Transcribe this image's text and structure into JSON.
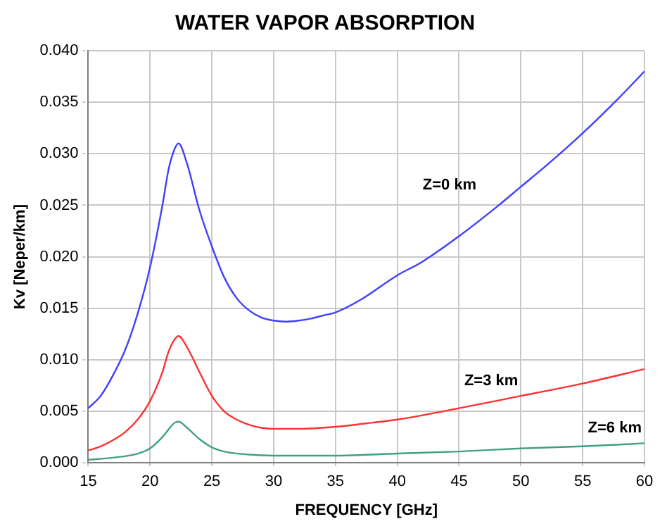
{
  "chart_data": {
    "type": "line",
    "title": "WATER VAPOR ABSORPTION",
    "xlabel": "FREQUENCY [GHz]",
    "ylabel": "Kv [Neper/km]",
    "xlim": [
      15,
      60
    ],
    "xticks": [
      15,
      20,
      25,
      30,
      35,
      40,
      45,
      50,
      55,
      60
    ],
    "ylim": [
      0,
      0.04
    ],
    "yticks": [
      {
        "value": 0,
        "label": "0.000"
      },
      {
        "value": 0.005,
        "label": "0.005"
      },
      {
        "value": 0.01,
        "label": "0.010"
      },
      {
        "value": 0.015,
        "label": "0.015"
      },
      {
        "value": 0.02,
        "label": "0.020"
      },
      {
        "value": 0.025,
        "label": "0.025"
      },
      {
        "value": 0.03,
        "label": "0.030"
      },
      {
        "value": 0.035,
        "label": "0.035"
      },
      {
        "value": 0.04,
        "label": "0.040"
      }
    ],
    "grid": true,
    "legend": false,
    "marker": "none",
    "line_style": "solid",
    "series": [
      {
        "name": "Z=0 km",
        "color": "#4040ff",
        "x": [
          15,
          16,
          17,
          18,
          19,
          20,
          21,
          21.5,
          22,
          22.3,
          23,
          24,
          25,
          26,
          27,
          28,
          29,
          30,
          31,
          32,
          33,
          34,
          35,
          37,
          40,
          42,
          45,
          48,
          50,
          52,
          55,
          58,
          60
        ],
        "values": [
          0.0053,
          0.0065,
          0.0085,
          0.011,
          0.0145,
          0.019,
          0.025,
          0.0285,
          0.0305,
          0.031,
          0.029,
          0.0245,
          0.021,
          0.018,
          0.016,
          0.0148,
          0.0141,
          0.0138,
          0.0137,
          0.0138,
          0.014,
          0.0143,
          0.0146,
          0.0158,
          0.0182,
          0.0195,
          0.022,
          0.0248,
          0.0268,
          0.0288,
          0.032,
          0.0355,
          0.038
        ]
      },
      {
        "name": "Z=3 km",
        "color": "#ff3030",
        "x": [
          15,
          16,
          17,
          18,
          19,
          20,
          21,
          21.5,
          22,
          22.3,
          23,
          24,
          25,
          26,
          27,
          28,
          29,
          30,
          32,
          35,
          38,
          40,
          45,
          50,
          55,
          60
        ],
        "values": [
          0.0012,
          0.0016,
          0.0022,
          0.003,
          0.0042,
          0.006,
          0.0088,
          0.0108,
          0.012,
          0.0123,
          0.0112,
          0.0088,
          0.0065,
          0.005,
          0.0042,
          0.0037,
          0.0034,
          0.0033,
          0.0033,
          0.0035,
          0.0039,
          0.0042,
          0.0053,
          0.0065,
          0.0077,
          0.0091
        ]
      },
      {
        "name": "Z=6 km",
        "color": "#40a080",
        "x": [
          15,
          17,
          19,
          20,
          21,
          22,
          22.3,
          23,
          24,
          25,
          26,
          28,
          30,
          35,
          40,
          45,
          50,
          55,
          60
        ],
        "values": [
          0.0003,
          0.0005,
          0.0009,
          0.0014,
          0.0025,
          0.0039,
          0.004,
          0.0034,
          0.0023,
          0.0015,
          0.0011,
          0.0008,
          0.0007,
          0.0007,
          0.0009,
          0.0011,
          0.0014,
          0.0016,
          0.0019
        ]
      }
    ]
  }
}
